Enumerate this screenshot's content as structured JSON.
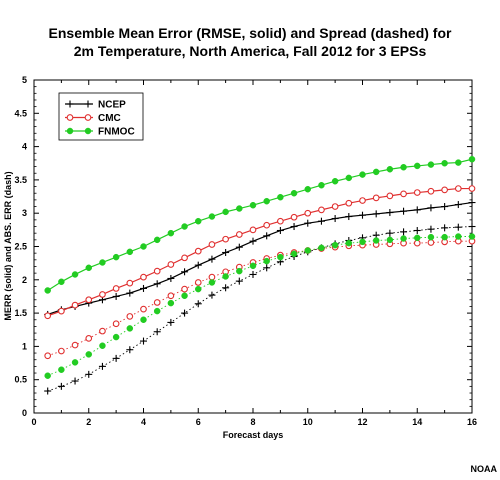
{
  "chart_data": {
    "type": "line",
    "title_line1": "Ensemble Mean Error (RMSE, solid) and Spread (dashed) for",
    "title_line2": "2m Temperature, North America, Fall 2012 for 3 EPSs",
    "xlabel": "Forecast days",
    "ylabel": "MERR (solid) and ABS. ERR (dash)",
    "xlim": [
      0,
      16
    ],
    "ylim": [
      0,
      5
    ],
    "xticks": [
      "0",
      "2",
      "4",
      "6",
      "8",
      "10",
      "12",
      "14",
      "16"
    ],
    "yticks": [
      "0",
      "0.5",
      "1",
      "1.5",
      "2",
      "2.5",
      "3",
      "3.5",
      "4",
      "4.5",
      "5"
    ],
    "grid": false,
    "legend_position": "top-left",
    "credit": "NOAA",
    "x": [
      0.5,
      1,
      1.5,
      2,
      2.5,
      3,
      3.5,
      4,
      4.5,
      5,
      5.5,
      6,
      6.5,
      7,
      7.5,
      8,
      8.5,
      9,
      9.5,
      10,
      10.5,
      11,
      11.5,
      12,
      12.5,
      13,
      13.5,
      14,
      14.5,
      15,
      15.5,
      16
    ],
    "series": [
      {
        "name": "NCEP",
        "color": "#000000",
        "marker": "plus",
        "rmse": [
          1.48,
          1.55,
          1.6,
          1.65,
          1.7,
          1.75,
          1.8,
          1.87,
          1.94,
          2.02,
          2.12,
          2.22,
          2.31,
          2.41,
          2.49,
          2.58,
          2.66,
          2.74,
          2.8,
          2.85,
          2.88,
          2.92,
          2.95,
          2.97,
          2.99,
          3.01,
          3.03,
          3.05,
          3.08,
          3.1,
          3.13,
          3.16
        ],
        "spread": [
          0.33,
          0.4,
          0.48,
          0.58,
          0.7,
          0.82,
          0.95,
          1.08,
          1.22,
          1.36,
          1.5,
          1.64,
          1.77,
          1.88,
          1.98,
          2.08,
          2.18,
          2.27,
          2.35,
          2.42,
          2.48,
          2.54,
          2.59,
          2.63,
          2.67,
          2.7,
          2.72,
          2.74,
          2.76,
          2.78,
          2.79,
          2.8
        ]
      },
      {
        "name": "CMC",
        "color": "#e03030",
        "marker": "open-circle",
        "rmse": [
          1.46,
          1.53,
          1.62,
          1.7,
          1.78,
          1.87,
          1.95,
          2.04,
          2.13,
          2.23,
          2.33,
          2.43,
          2.53,
          2.61,
          2.68,
          2.75,
          2.82,
          2.88,
          2.94,
          3.0,
          3.05,
          3.1,
          3.15,
          3.19,
          3.23,
          3.26,
          3.29,
          3.31,
          3.33,
          3.35,
          3.37,
          3.37
        ],
        "spread": [
          0.86,
          0.93,
          1.02,
          1.12,
          1.23,
          1.34,
          1.45,
          1.56,
          1.66,
          1.76,
          1.86,
          1.96,
          2.04,
          2.12,
          2.19,
          2.26,
          2.32,
          2.37,
          2.41,
          2.44,
          2.47,
          2.49,
          2.51,
          2.52,
          2.53,
          2.54,
          2.55,
          2.55,
          2.56,
          2.57,
          2.58,
          2.58
        ]
      },
      {
        "name": "FNMOC",
        "color": "#22cc22",
        "marker": "filled-circle",
        "rmse": [
          1.84,
          1.97,
          2.08,
          2.18,
          2.26,
          2.34,
          2.42,
          2.5,
          2.6,
          2.7,
          2.8,
          2.88,
          2.95,
          3.02,
          3.07,
          3.12,
          3.18,
          3.24,
          3.3,
          3.36,
          3.42,
          3.48,
          3.53,
          3.58,
          3.62,
          3.66,
          3.69,
          3.71,
          3.73,
          3.75,
          3.76,
          3.81
        ],
        "spread": [
          0.56,
          0.65,
          0.76,
          0.88,
          1.01,
          1.14,
          1.27,
          1.4,
          1.53,
          1.65,
          1.76,
          1.86,
          1.96,
          2.05,
          2.13,
          2.21,
          2.28,
          2.34,
          2.39,
          2.44,
          2.48,
          2.52,
          2.55,
          2.57,
          2.59,
          2.6,
          2.62,
          2.63,
          2.64,
          2.64,
          2.65,
          2.65
        ]
      }
    ]
  }
}
